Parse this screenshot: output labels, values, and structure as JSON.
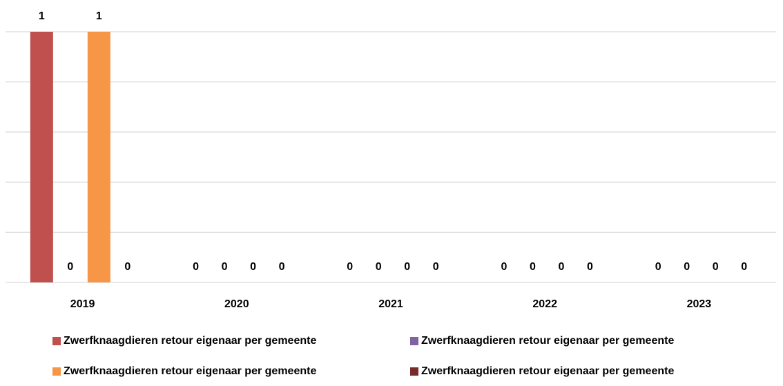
{
  "chart_data": {
    "type": "bar",
    "categories": [
      "2019",
      "2020",
      "2021",
      "2022",
      "2023"
    ],
    "series": [
      {
        "name": "Zwerfknaagdieren retour eigenaar per gemeente",
        "color": "#c0504d",
        "values": [
          1,
          0,
          0,
          0,
          0
        ]
      },
      {
        "name": "Zwerfknaagdieren retour eigenaar per gemeente",
        "color": "#8064a2",
        "values": [
          0,
          0,
          0,
          0,
          0
        ]
      },
      {
        "name": "Zwerfknaagdieren retour eigenaar per gemeente",
        "color": "#f79646",
        "values": [
          1,
          0,
          0,
          0,
          0
        ]
      },
      {
        "name": "Zwerfknaagdieren retour eigenaar per gemeente",
        "color": "#772c2a",
        "values": [
          0,
          0,
          0,
          0,
          0
        ]
      }
    ],
    "ylim": [
      0,
      1
    ],
    "yticks": [
      0,
      0.2,
      0.4,
      0.6,
      0.8,
      1
    ],
    "grid": true,
    "legend": "bottom"
  }
}
